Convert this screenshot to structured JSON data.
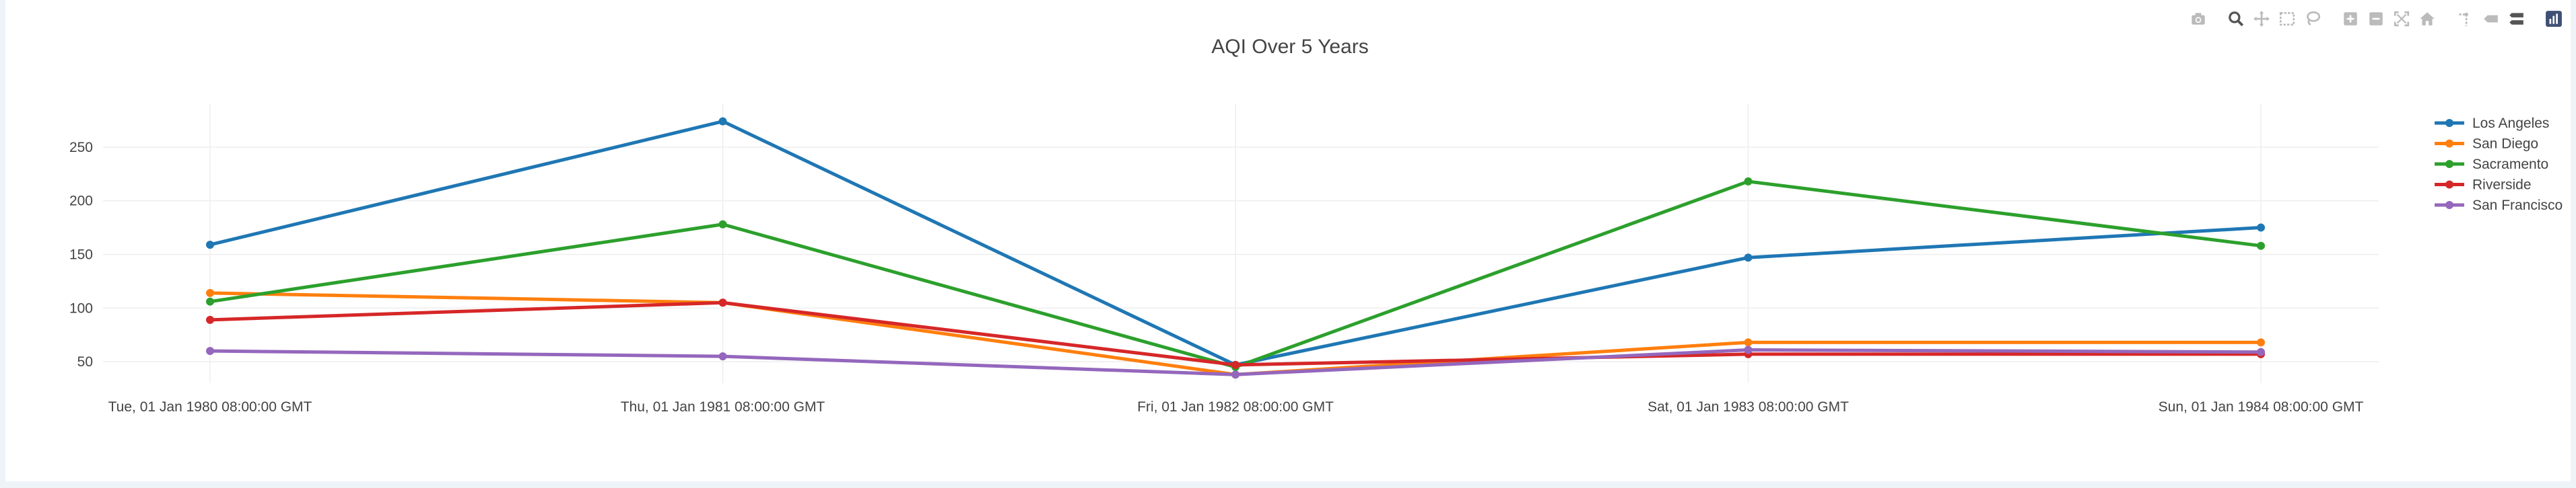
{
  "chart_data": {
    "type": "line",
    "title": "AQI Over 5 Years",
    "xlabel": "",
    "ylabel": "",
    "x": [
      "Tue, 01 Jan 1980 08:00:00 GMT",
      "Thu, 01 Jan 1981 08:00:00 GMT",
      "Fri, 01 Jan 1982 08:00:00 GMT",
      "Sat, 01 Jan 1983 08:00:00 GMT",
      "Sun, 01 Jan 1984 08:00:00 GMT"
    ],
    "yticks": [
      50,
      100,
      150,
      200,
      250
    ],
    "ylim": [
      30,
      290
    ],
    "grid": true,
    "legend_position": "top-right",
    "series": [
      {
        "name": "Los Angeles",
        "color": "#1f77b4",
        "values": [
          159,
          274,
          47,
          147,
          175
        ]
      },
      {
        "name": "San Diego",
        "color": "#ff7f0e",
        "values": [
          114,
          105,
          38,
          68,
          68
        ]
      },
      {
        "name": "Sacramento",
        "color": "#2ca02c",
        "values": [
          106,
          178,
          45,
          218,
          158
        ]
      },
      {
        "name": "Riverside",
        "color": "#d62728",
        "values": [
          89,
          105,
          47,
          57,
          57
        ]
      },
      {
        "name": "San Francisco",
        "color": "#9467bd",
        "values": [
          60,
          55,
          38,
          61,
          59
        ]
      }
    ]
  },
  "modebar": {
    "icons": [
      "camera-icon",
      "zoom-icon",
      "pan-icon",
      "box-select-icon",
      "lasso-icon",
      "zoom-in-icon",
      "zoom-out-icon",
      "autoscale-icon",
      "home-icon",
      "spike-lines-icon",
      "hover-closest-icon",
      "hover-compare-icon",
      "plotly-logo-icon"
    ]
  }
}
